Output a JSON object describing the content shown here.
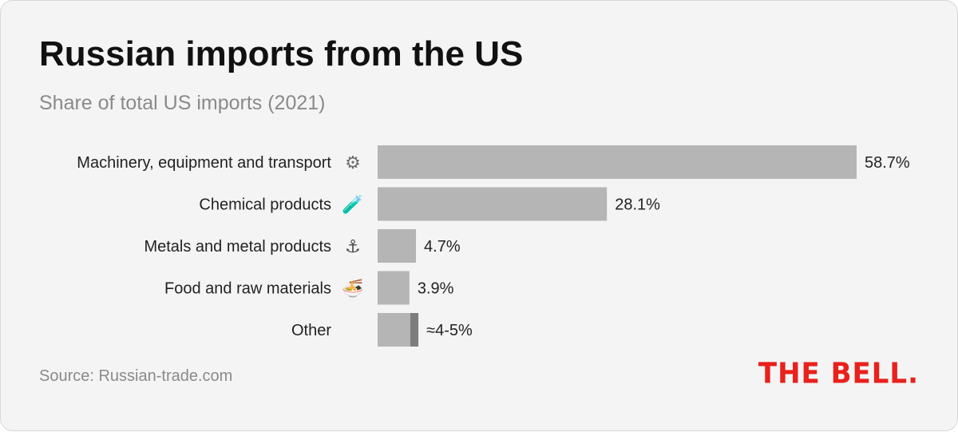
{
  "header": {
    "title": "Russian imports from the US",
    "subtitle": "Share of total US imports (2021)"
  },
  "footer": {
    "source": "Source: Russian-trade.com",
    "logo": "THE BELL."
  },
  "colors": {
    "bar": "#b5b5b5",
    "bar_accent": "#7d7d7d",
    "logo": "#e8211c",
    "background": "#f4f4f4"
  },
  "chart_data": {
    "type": "bar",
    "orientation": "horizontal",
    "title": "Russian imports from the US",
    "subtitle": "Share of total US imports (2021)",
    "categories": [
      "Machinery, equipment and transport",
      "Chemical products",
      "Metals and metal products",
      "Food and raw materials",
      "Other"
    ],
    "values": [
      58.7,
      28.1,
      4.7,
      3.9,
      4.5
    ],
    "value_labels": [
      "58.7%",
      "28.1%",
      "4.7%",
      "3.9%",
      "≈4-5%"
    ],
    "icons": [
      "gear-icon",
      "test-tube-icon",
      "anchor-icon",
      "noodle-bowl-icon",
      ""
    ],
    "range_last": [
      4,
      5
    ],
    "xlim": [
      0,
      58.7
    ],
    "grid": false,
    "legend": "none"
  }
}
